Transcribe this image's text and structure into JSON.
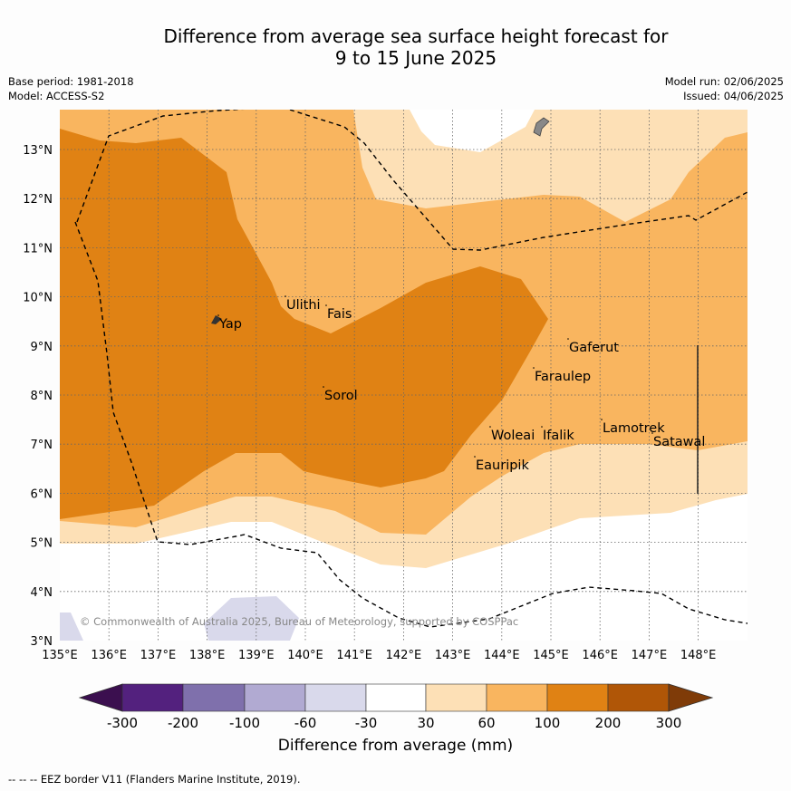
{
  "header": {
    "title_line1": "Difference from average sea surface height forecast for",
    "title_line2": "9 to 15 June 2025",
    "base_period": "Base period: 1981-2018",
    "model": "Model: ACCESS-S2",
    "model_run": "Model run: 02/06/2025",
    "issued": "Issued: 04/06/2025"
  },
  "map": {
    "lon_labels": [
      "135°E",
      "136°E",
      "137°E",
      "138°E",
      "139°E",
      "140°E",
      "141°E",
      "142°E",
      "143°E",
      "144°E",
      "145°E",
      "146°E",
      "147°E",
      "148°E"
    ],
    "lat_labels": [
      "3°N",
      "4°N",
      "5°N",
      "6°N",
      "7°N",
      "8°N",
      "9°N",
      "10°N",
      "11°N",
      "12°N",
      "13°N"
    ],
    "places": [
      "Yap",
      "Ulithi",
      "Fais",
      "Sorol",
      "Gaferut",
      "Faraulep",
      "Woleai",
      "Ifalik",
      "Lamotrek",
      "Satawal",
      "Eauripik"
    ],
    "copyright": "© Commonwealth of Australia 2025, Bureau of Meteorology, supported by COSPPac"
  },
  "colorbar": {
    "ticks": [
      "-300",
      "-200",
      "-100",
      "-60",
      "-30",
      "30",
      "60",
      "100",
      "200",
      "300"
    ],
    "colors": [
      "#3b0f4f",
      "#53217e",
      "#7f70ac",
      "#b1aad2",
      "#d9d9eb",
      "#ffffff",
      "#fde0b6",
      "#f9b55f",
      "#e08214",
      "#b05607",
      "#7f3b08"
    ],
    "label": "Difference from average (mm)"
  },
  "footer": {
    "eez_note": "--  --  -- EEZ border V11 (Flanders Marine Institute, 2019)."
  }
}
